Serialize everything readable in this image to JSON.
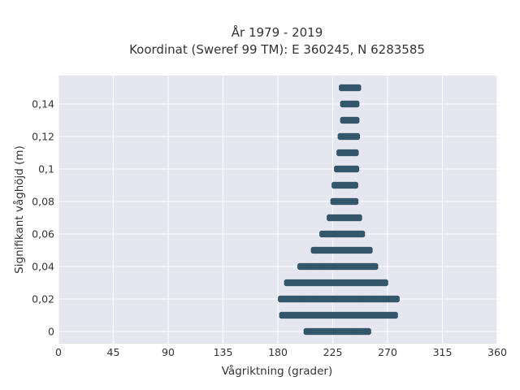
{
  "chart_data": {
    "type": "scatter",
    "title_line1": "År 1979 - 2019",
    "title_line2": "Koordinat (Sweref 99 TM): E 360245, N 6283585",
    "xlabel": "Vågriktning (grader)",
    "ylabel": "Signifikant våghöjd (m)",
    "xlim": [
      0,
      360
    ],
    "ylim": [
      -0.0075,
      0.1575
    ],
    "xticks": [
      0,
      45,
      90,
      135,
      180,
      225,
      270,
      315,
      360
    ],
    "xtick_labels": [
      "0",
      "45",
      "90",
      "135",
      "180",
      "225",
      "270",
      "315",
      "360"
    ],
    "yticks": [
      0,
      0.02,
      0.04,
      0.06,
      0.08,
      0.1,
      0.12,
      0.14
    ],
    "ytick_labels": [
      "0",
      "0,02",
      "0,04",
      "0,06",
      "0,08",
      "0,1",
      "0,12",
      "0,14"
    ],
    "grid": true,
    "background": "#e5e6f0",
    "marker_color": "#34566b",
    "bands": [
      {
        "y": 0.0,
        "x_min": 203,
        "x_max": 255
      },
      {
        "y": 0.01,
        "x_min": 183,
        "x_max": 277
      },
      {
        "y": 0.02,
        "x_min": 182,
        "x_max": 278
      },
      {
        "y": 0.03,
        "x_min": 187,
        "x_max": 269
      },
      {
        "y": 0.04,
        "x_min": 198,
        "x_max": 261
      },
      {
        "y": 0.05,
        "x_min": 209,
        "x_max": 256
      },
      {
        "y": 0.06,
        "x_min": 216,
        "x_max": 250
      },
      {
        "y": 0.07,
        "x_min": 222,
        "x_max": 248
      },
      {
        "y": 0.08,
        "x_min": 225,
        "x_max": 245
      },
      {
        "y": 0.09,
        "x_min": 226,
        "x_max": 245
      },
      {
        "y": 0.1,
        "x_min": 228,
        "x_max": 245
      },
      {
        "y": 0.11,
        "x_min": 230,
        "x_max": 245
      },
      {
        "y": 0.12,
        "x_min": 231,
        "x_max": 246
      },
      {
        "y": 0.13,
        "x_min": 233,
        "x_max": 245
      },
      {
        "y": 0.14,
        "x_min": 233,
        "x_max": 246
      },
      {
        "y": 0.15,
        "x_min": 232,
        "x_max": 247
      }
    ]
  }
}
